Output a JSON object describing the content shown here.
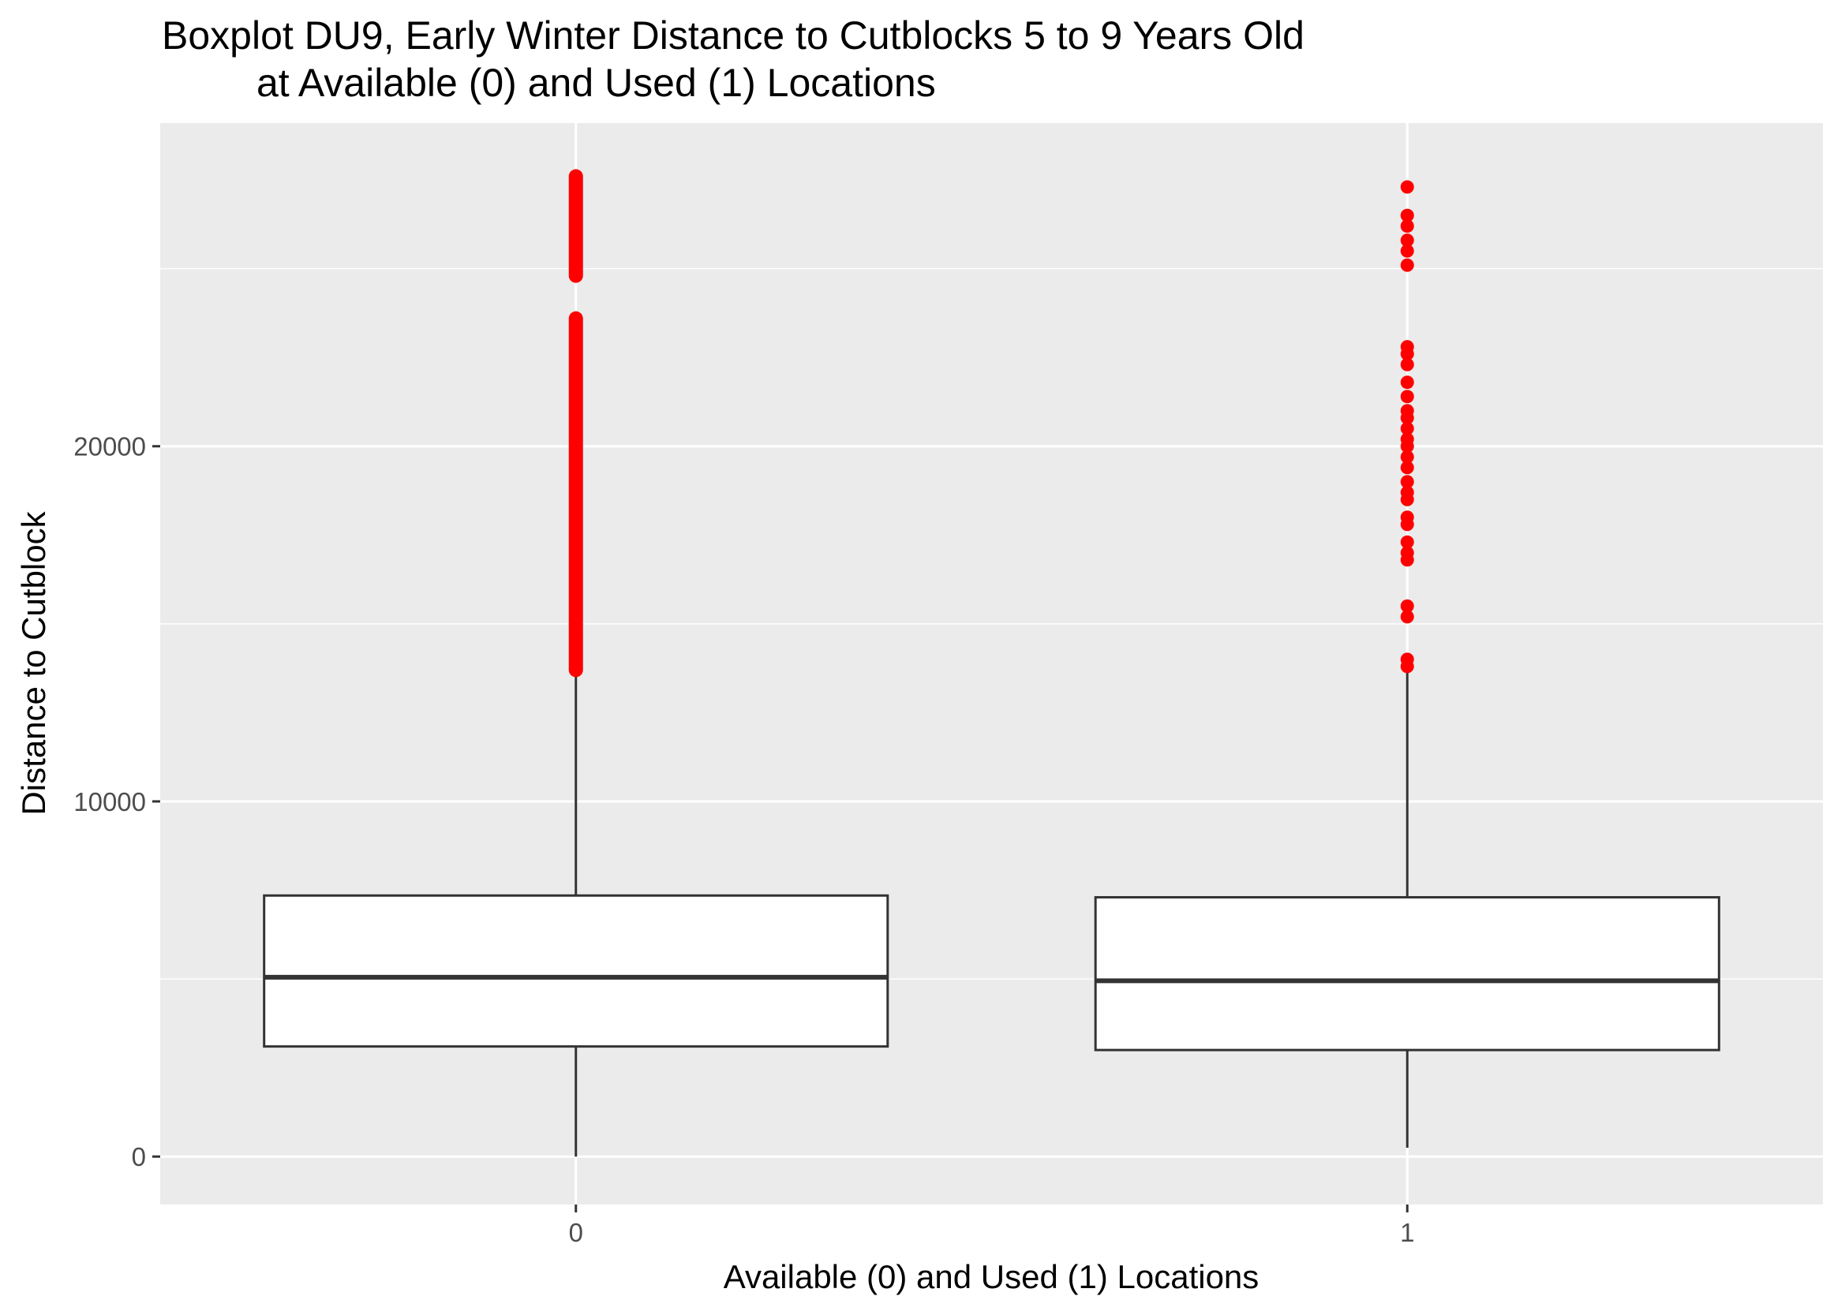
{
  "chart_data": {
    "type": "boxplot",
    "title": [
      "Boxplot DU9, Early Winter Distance to Cutblocks 5 to 9 Years Old",
      "at Available (0) and Used (1) Locations"
    ],
    "xlabel": "Available (0) and Used (1) Locations",
    "ylabel": "Distance to Cutblock",
    "ylim": [
      -1350,
      29100
    ],
    "yticks": [
      0,
      10000,
      20000
    ],
    "yticklabels": [
      "0",
      "10000",
      "20000"
    ],
    "grid": true,
    "categories": [
      "0",
      "1"
    ],
    "series": [
      {
        "category": "0",
        "min": 0,
        "q1": 3100,
        "median": 5050,
        "q3": 7350,
        "max": 13700,
        "outlier_ranges": [
          [
            13700,
            23600
          ],
          [
            24800,
            27600
          ]
        ],
        "outliers": []
      },
      {
        "category": "1",
        "min": 250,
        "q1": 3000,
        "median": 4950,
        "q3": 7300,
        "max": 13700,
        "outlier_ranges": [],
        "outliers": [
          13800,
          14000,
          15200,
          15500,
          16800,
          17000,
          17300,
          17800,
          18000,
          18500,
          18700,
          19000,
          19400,
          19700,
          20000,
          20200,
          20500,
          20800,
          21000,
          21400,
          21800,
          22300,
          22600,
          22800,
          25100,
          25500,
          25800,
          26200,
          26500,
          27300
        ]
      }
    ],
    "colors": {
      "panel_bg": "#ebebeb",
      "grid": "#ffffff",
      "box_fill": "#ffffff",
      "box_line": "#333333",
      "outlier": "#ff0000",
      "tick": "#333333"
    }
  }
}
